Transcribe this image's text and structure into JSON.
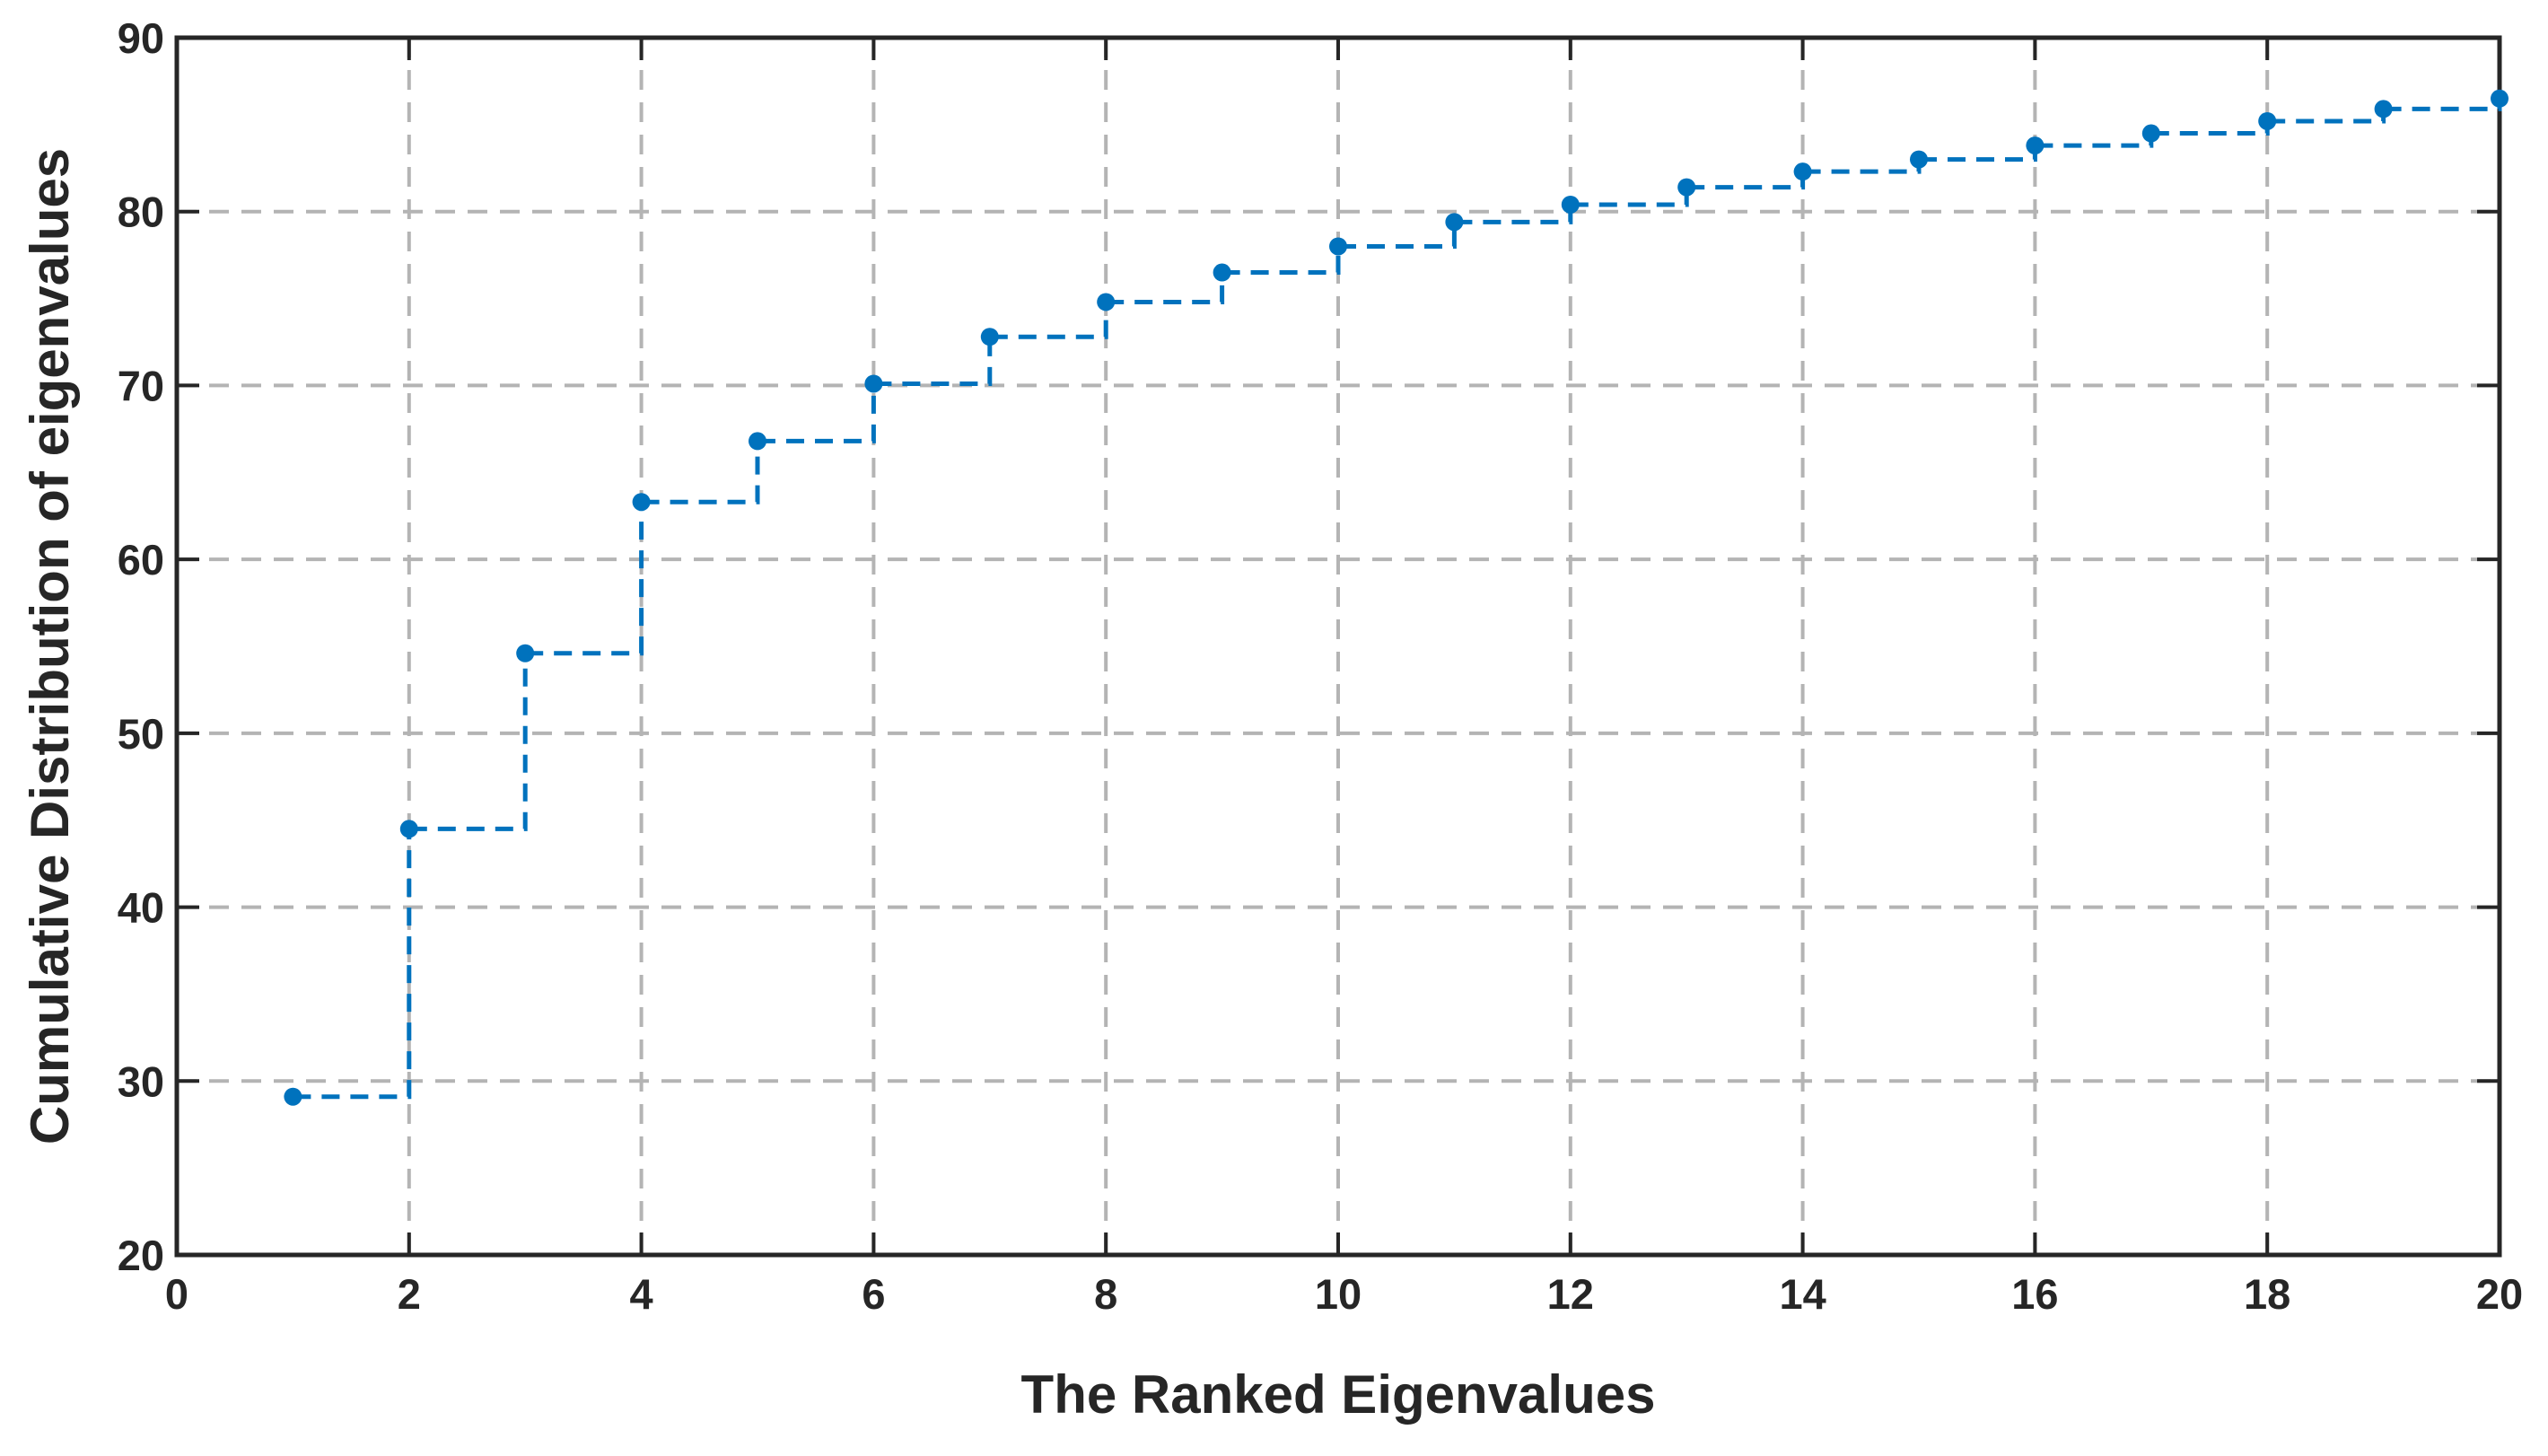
{
  "chart_data": {
    "type": "line",
    "drawstyle": "steps-post",
    "xlabel": "The Ranked Eigenvalues",
    "ylabel": "Cumulative Distribution of eigenvalues",
    "x": [
      1,
      2,
      3,
      4,
      5,
      6,
      7,
      8,
      9,
      10,
      11,
      12,
      13,
      14,
      15,
      16,
      17,
      18,
      19,
      20
    ],
    "series": [
      {
        "color": "#0072bd",
        "values": [
          29.1,
          44.5,
          54.6,
          63.3,
          66.8,
          70.1,
          72.8,
          74.8,
          76.5,
          78.0,
          79.4,
          80.4,
          81.4,
          82.3,
          83.0,
          83.8,
          84.5,
          85.2,
          85.9,
          86.5
        ]
      }
    ],
    "xlim": [
      0,
      20
    ],
    "xticks": [
      0,
      2,
      4,
      6,
      8,
      10,
      12,
      14,
      16,
      18,
      20
    ],
    "ylim": [
      20,
      90
    ],
    "yticks": [
      20,
      30,
      40,
      50,
      60,
      70,
      80,
      90
    ],
    "grid": true
  }
}
